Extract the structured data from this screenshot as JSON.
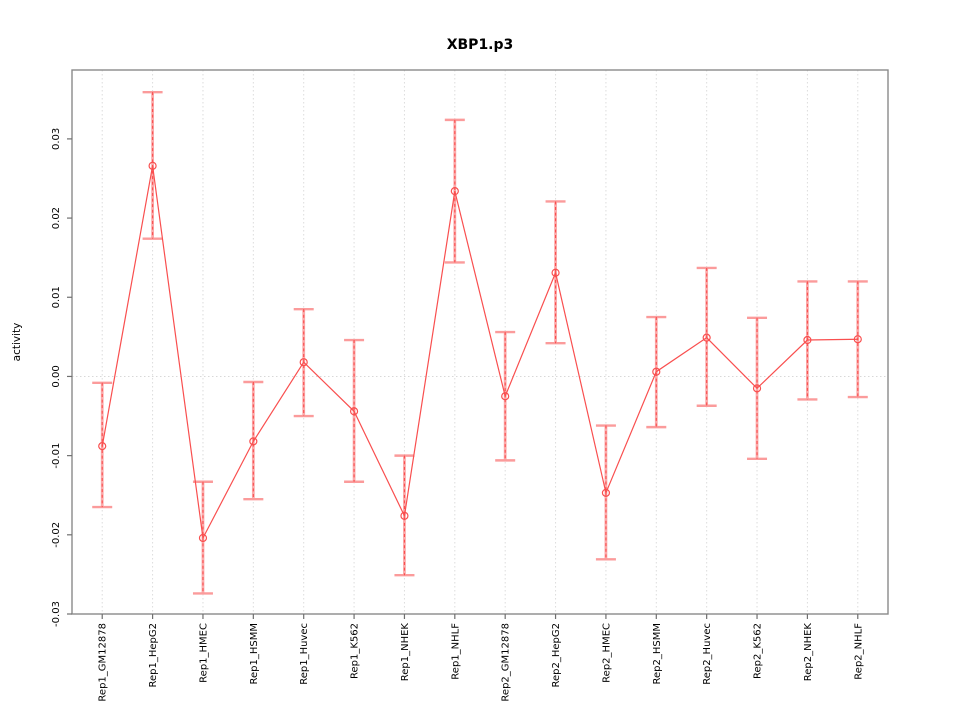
{
  "figure": {
    "title": "XBP1.p3",
    "ylabel": "activity"
  },
  "chart_data": {
    "type": "line",
    "title": "XBP1.p3",
    "xlabel": "",
    "ylabel": "activity",
    "legend": "none",
    "grid": "vertical dashed gridline per category; dotted horizontal line at y=0",
    "categories": [
      "Rep1_GM12878",
      "Rep1_HepG2",
      "Rep1_HMEC",
      "Rep1_HSMM",
      "Rep1_Huvec",
      "Rep1_K562",
      "Rep1_NHEK",
      "Rep1_NHLF",
      "Rep2_GM12878",
      "Rep2_HepG2",
      "Rep2_HMEC",
      "Rep2_HSMM",
      "Rep2_Huvec",
      "Rep2_K562",
      "Rep2_NHEK",
      "Rep2_NHLF"
    ],
    "series": [
      {
        "name": "activity",
        "marker": "open-circle",
        "values": [
          -0.0088,
          0.0266,
          -0.0204,
          -0.0082,
          0.0018,
          -0.0044,
          -0.0176,
          0.0234,
          -0.0025,
          0.0131,
          -0.0147,
          0.0006,
          0.0049,
          -0.0015,
          0.0046,
          0.0047
        ],
        "err_low": [
          -0.0165,
          0.0174,
          -0.0274,
          -0.0155,
          -0.005,
          -0.0133,
          -0.0251,
          0.0144,
          -0.0106,
          0.0042,
          -0.0231,
          -0.0064,
          -0.0037,
          -0.0104,
          -0.0029,
          -0.0026
        ],
        "err_high": [
          -0.0008,
          0.0359,
          -0.0133,
          -0.0007,
          0.0085,
          0.0046,
          -0.01,
          0.0324,
          0.0056,
          0.0221,
          -0.0062,
          0.0075,
          0.0137,
          0.0074,
          0.012,
          0.012
        ]
      }
    ],
    "ylim": [
      -0.03,
      0.0387
    ],
    "yticks": [
      -0.03,
      -0.02,
      -0.01,
      0,
      0.01,
      0.02,
      0.03
    ],
    "ytick_labels": [
      "-0.03",
      "-0.02",
      "-0.01",
      "0.00",
      "0.01",
      "0.02",
      "0.03"
    ],
    "colors": {
      "series_line": "#f94f4f",
      "error_whisker_dash": "#f94f4f",
      "error_underbar": "#fbaaaa",
      "error_cap": "#fb9b9b",
      "axis_box": "#8a8a8a",
      "tick": "#6f6f6f",
      "gridline": "#dcdcdc",
      "zero_line": "#d8d8d8",
      "text": "#000000"
    }
  }
}
